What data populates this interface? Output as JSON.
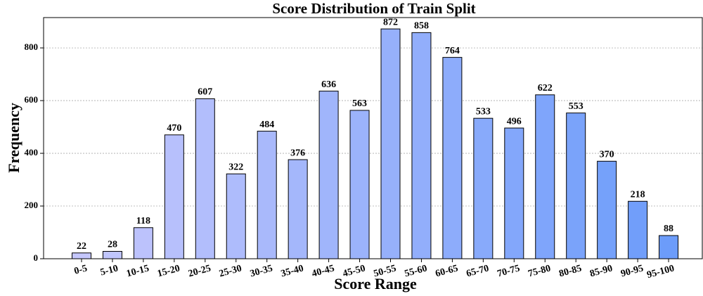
{
  "chart_data": {
    "type": "bar",
    "title": "Score Distribution of Train Split",
    "xlabel": "Score Range",
    "ylabel": "Frequency",
    "categories": [
      "0-5",
      "5-10",
      "10-15",
      "15-20",
      "20-25",
      "25-30",
      "30-35",
      "35-40",
      "40-45",
      "45-50",
      "50-55",
      "55-60",
      "60-65",
      "65-70",
      "70-75",
      "75-80",
      "80-85",
      "85-90",
      "90-95",
      "95-100"
    ],
    "values": [
      22,
      28,
      118,
      470,
      607,
      322,
      484,
      376,
      636,
      563,
      872,
      858,
      764,
      533,
      496,
      622,
      553,
      370,
      218,
      88
    ],
    "colors": [
      "#c5c7fc",
      "#c0c5fc",
      "#bcc2fc",
      "#b7c0fc",
      "#b2befc",
      "#aebcfc",
      "#a9b9fb",
      "#a4b7fb",
      "#a0b5fb",
      "#9bb3fb",
      "#96b0fb",
      "#92aefb",
      "#8dacfb",
      "#88aafb",
      "#83a7fb",
      "#7fa5fb",
      "#7aa3fa",
      "#75a1fa",
      "#719efa",
      "#6c9cfa"
    ],
    "ylim": [
      0,
      915
    ],
    "yticks": [
      0,
      200,
      400,
      600,
      800
    ],
    "grid": true
  }
}
